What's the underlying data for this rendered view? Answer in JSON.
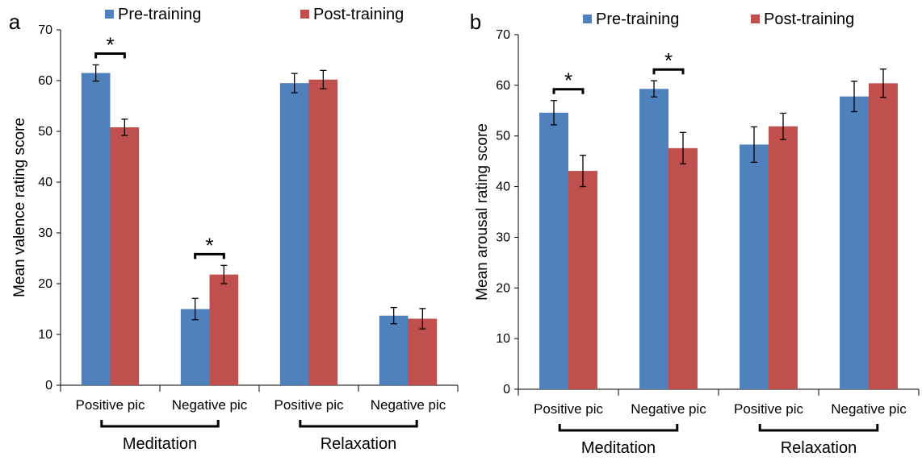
{
  "colors": {
    "pre": "#4f81bd",
    "post": "#c0504d",
    "axis": "#000000"
  },
  "chart_data": [
    {
      "type": "bar",
      "panel": "a",
      "ylabel": "Mean valence rating score",
      "ylim": [
        0,
        70
      ],
      "yticks": [
        0,
        10,
        20,
        30,
        40,
        50,
        60,
        70
      ],
      "categories": [
        "Positive pic",
        "Negative pic",
        "Positive pic",
        "Negative pic"
      ],
      "groups": [
        {
          "label": "Meditation",
          "categories": [
            0,
            1
          ]
        },
        {
          "label": "Relaxation",
          "categories": [
            2,
            3
          ]
        }
      ],
      "legend": [
        "Pre-training",
        "Post-training"
      ],
      "legend_position": "top",
      "series": [
        {
          "name": "Pre-training",
          "values": [
            61.5,
            15,
            59.5,
            13.7
          ],
          "errors": [
            1.6,
            2.1,
            1.9,
            1.6
          ]
        },
        {
          "name": "Post-training",
          "values": [
            50.8,
            21.8,
            60.2,
            13.1
          ],
          "errors": [
            1.6,
            1.8,
            1.8,
            2.0
          ]
        }
      ],
      "significance": [
        {
          "category": 0,
          "label": "*"
        },
        {
          "category": 1,
          "label": "*"
        }
      ]
    },
    {
      "type": "bar",
      "panel": "b",
      "ylabel": "Mean arousal rating score",
      "ylim": [
        0,
        70
      ],
      "yticks": [
        0,
        10,
        20,
        30,
        40,
        50,
        60,
        70
      ],
      "categories": [
        "Positive pic",
        "Negative pic",
        "Positive pic",
        "Negative pic"
      ],
      "groups": [
        {
          "label": "Meditation",
          "categories": [
            0,
            1
          ]
        },
        {
          "label": "Relaxation",
          "categories": [
            2,
            3
          ]
        }
      ],
      "legend": [
        "Pre-training",
        "Post-training"
      ],
      "legend_position": "top",
      "series": [
        {
          "name": "Pre-training",
          "values": [
            54.6,
            59.3,
            48.3,
            57.8
          ],
          "errors": [
            2.4,
            1.6,
            3.5,
            3.0
          ]
        },
        {
          "name": "Post-training",
          "values": [
            43.1,
            47.6,
            51.9,
            60.4
          ],
          "errors": [
            3.1,
            3.1,
            2.6,
            2.8
          ]
        }
      ],
      "significance": [
        {
          "category": 0,
          "label": "*"
        },
        {
          "category": 1,
          "label": "*"
        }
      ]
    }
  ]
}
